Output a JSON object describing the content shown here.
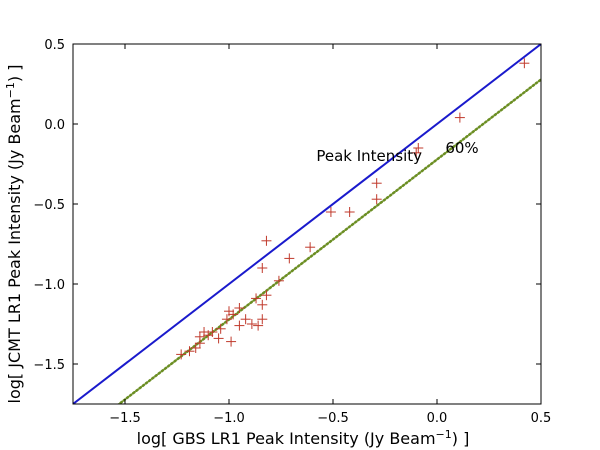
{
  "chart_data": {
    "type": "scatter",
    "xlabel": "log[ GBS LR1 Peak Intensity (Jy Beam",
    "ylabel": "log[ JCMT LR1 Peak Intensity (Jy Beam",
    "label_unit_exponent": "−1",
    "label_close": ") ]",
    "xlim": [
      -1.75,
      0.5
    ],
    "ylim": [
      -1.75,
      0.5
    ],
    "x_ticks": [
      {
        "value": -1.5,
        "label": "−1.5"
      },
      {
        "value": -1.0,
        "label": "−1.0"
      },
      {
        "value": -0.5,
        "label": "−0.5"
      },
      {
        "value": 0.0,
        "label": "0.0"
      },
      {
        "value": 0.5,
        "label": "0.5"
      }
    ],
    "y_ticks": [
      {
        "value": -1.5,
        "label": "−1.5"
      },
      {
        "value": -1.0,
        "label": "−1.0"
      },
      {
        "value": -0.5,
        "label": "−0.5"
      },
      {
        "value": 0.0,
        "label": "0.0"
      },
      {
        "value": 0.5,
        "label": "0.5"
      }
    ],
    "grid": false,
    "points": {
      "marker": "plus",
      "color": "#c0392b",
      "data": [
        [
          0.42,
          0.38
        ],
        [
          0.11,
          0.04
        ],
        [
          -0.09,
          -0.15
        ],
        [
          -0.1,
          -0.18
        ],
        [
          -0.29,
          -0.37
        ],
        [
          -0.29,
          -0.47
        ],
        [
          -0.42,
          -0.55
        ],
        [
          -0.51,
          -0.55
        ],
        [
          -0.61,
          -0.77
        ],
        [
          -0.71,
          -0.84
        ],
        [
          -0.76,
          -0.98
        ],
        [
          -0.82,
          -0.73
        ],
        [
          -0.84,
          -0.9
        ],
        [
          -0.82,
          -1.07
        ],
        [
          -0.84,
          -1.13
        ],
        [
          -0.84,
          -1.22
        ],
        [
          -0.87,
          -1.09
        ],
        [
          -0.86,
          -1.26
        ],
        [
          -0.89,
          -1.25
        ],
        [
          -0.92,
          -1.22
        ],
        [
          -0.95,
          -1.15
        ],
        [
          -0.95,
          -1.26
        ],
        [
          -0.98,
          -1.19
        ],
        [
          -1.0,
          -1.17
        ],
        [
          -1.01,
          -1.22
        ],
        [
          -0.99,
          -1.36
        ],
        [
          -1.04,
          -1.28
        ],
        [
          -1.05,
          -1.34
        ],
        [
          -1.08,
          -1.3
        ],
        [
          -1.1,
          -1.32
        ],
        [
          -1.12,
          -1.3
        ],
        [
          -1.14,
          -1.33
        ],
        [
          -1.14,
          -1.37
        ],
        [
          -1.16,
          -1.4
        ],
        [
          -1.19,
          -1.42
        ],
        [
          -1.23,
          -1.44
        ]
      ]
    },
    "lines": [
      {
        "name": "Peak Intensity",
        "style": "solid",
        "color": "#1a1acc",
        "slope": 1,
        "factor": 1.0
      },
      {
        "name": "60%",
        "style": "dotted",
        "color": "#6b8e23",
        "slope": 1,
        "factor": 0.6
      }
    ],
    "annotations": [
      {
        "text": "Peak Intensity",
        "x": -0.58,
        "y": -0.23
      },
      {
        "text": "60%",
        "x": 0.04,
        "y": -0.18
      }
    ]
  }
}
